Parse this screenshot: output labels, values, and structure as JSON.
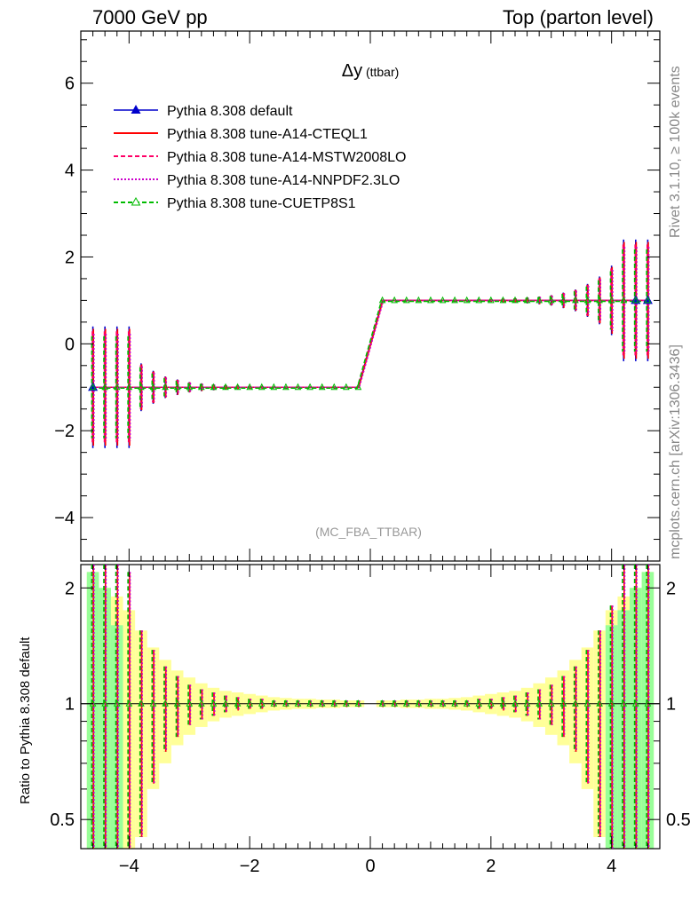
{
  "header": {
    "left": "7000 GeV pp",
    "right": "Top (parton level)"
  },
  "side": {
    "rivet": "Rivet 3.1.10, ≥ 100k events",
    "mcplots": "mcplots.cern.ch [arXiv:1306.3436]"
  },
  "chart_data": [
    {
      "type": "line",
      "title": "Δy",
      "title_suffix": "(ttbar)",
      "analysis": "(MC_FBA_TTBAR)",
      "xlim": [
        -4.8,
        4.8
      ],
      "ylim": [
        -5,
        7.2
      ],
      "yticks": [
        -4,
        -2,
        0,
        2,
        4,
        6
      ],
      "xticks": [
        -4,
        -2,
        0,
        2,
        4
      ],
      "legend_position": "top-left",
      "series": [
        {
          "name": "Pythia 8.308 default",
          "color": "#0000cc",
          "style": "solid",
          "marker": "triangle-filled"
        },
        {
          "name": "Pythia 8.308 tune-A14-CTEQL1",
          "color": "#ff0000",
          "style": "solid",
          "marker": "none"
        },
        {
          "name": "Pythia 8.308 tune-A14-MSTW2008LO",
          "color": "#ff0066",
          "style": "dashed",
          "marker": "none"
        },
        {
          "name": "Pythia 8.308 tune-A14-NNPDF2.3LO",
          "color": "#cc00cc",
          "style": "dotted",
          "marker": "none"
        },
        {
          "name": "Pythia 8.308 tune-CUETP8S1",
          "color": "#00bb00",
          "style": "dashed",
          "marker": "triangle-open"
        }
      ],
      "x": [
        -4.6,
        -4.4,
        -4.2,
        -4.0,
        -3.8,
        -3.6,
        -3.4,
        -3.2,
        -3.0,
        -2.8,
        -2.6,
        -2.4,
        -2.2,
        -2.0,
        -1.8,
        -1.6,
        -1.4,
        -1.2,
        -1.0,
        -0.8,
        -0.6,
        -0.4,
        -0.2,
        0.2,
        0.4,
        0.6,
        0.8,
        1.0,
        1.2,
        1.4,
        1.6,
        1.8,
        2.0,
        2.2,
        2.4,
        2.6,
        2.8,
        3.0,
        3.2,
        3.4,
        3.6,
        3.8,
        4.0,
        4.2,
        4.4,
        4.6
      ],
      "y": [
        -1,
        -1,
        -1,
        -1,
        -1,
        -1,
        -1,
        -1,
        -1,
        -1,
        -1,
        -1,
        -1,
        -1,
        -1,
        -1,
        -1,
        -1,
        -1,
        -1,
        -1,
        -1,
        -1,
        1,
        1,
        1,
        1,
        1,
        1,
        1,
        1,
        1,
        1,
        1,
        1,
        1,
        1,
        1,
        1,
        1,
        1,
        1,
        1,
        1,
        1,
        1
      ],
      "yerr": [
        1.4,
        1.4,
        1.4,
        1.4,
        0.55,
        0.38,
        0.25,
        0.18,
        0.12,
        0.09,
        0.07,
        0.05,
        0.04,
        0.03,
        0.03,
        0.02,
        0.02,
        0.02,
        0.02,
        0.02,
        0.02,
        0.02,
        0.02,
        0.02,
        0.02,
        0.02,
        0.02,
        0.02,
        0.02,
        0.02,
        0.02,
        0.03,
        0.03,
        0.04,
        0.05,
        0.07,
        0.09,
        0.12,
        0.18,
        0.25,
        0.38,
        0.55,
        0.8,
        1.4,
        1.4,
        1.4
      ],
      "markers_default_x": [
        -4.6,
        4.4,
        4.6
      ]
    },
    {
      "type": "line",
      "ylabel": "Ratio to Pythia 8.308 default",
      "xlim": [
        -4.8,
        4.8
      ],
      "ylim": [
        0.42,
        2.3
      ],
      "yscale": "log",
      "yticks": [
        0.5,
        1,
        2
      ],
      "ytick_labels": [
        "0.5",
        "1",
        "2"
      ],
      "xticks": [
        -4,
        -2,
        0,
        2,
        4
      ],
      "xtick_labels": [
        "−4",
        "−2",
        "0",
        "2",
        "4"
      ],
      "reference": 1,
      "band_yellow_halfwidth": [
        1.2,
        1.0,
        0.9,
        0.75,
        0.55,
        0.4,
        0.3,
        0.22,
        0.17,
        0.13,
        0.1,
        0.08,
        0.07,
        0.06,
        0.05,
        0.04,
        0.035,
        0.03,
        0.03,
        0.025,
        0.025,
        0.02,
        0.02,
        0.02,
        0.02,
        0.025,
        0.025,
        0.03,
        0.03,
        0.035,
        0.04,
        0.05,
        0.06,
        0.07,
        0.08,
        0.1,
        0.13,
        0.17,
        0.22,
        0.3,
        0.4,
        0.55,
        0.75,
        0.9,
        1.0,
        1.2
      ],
      "band_green_halfwidth": [
        1.2,
        1.0,
        0.6,
        0.0,
        0.0,
        0.0,
        0.0,
        0.0,
        0.0,
        0.0,
        0.0,
        0.0,
        0.0,
        0.0,
        0.0,
        0.0,
        0.0,
        0.0,
        0.0,
        0.0,
        0.0,
        0.0,
        0.0,
        0.0,
        0.0,
        0.0,
        0.0,
        0.0,
        0.0,
        0.0,
        0.0,
        0.0,
        0.0,
        0.0,
        0.0,
        0.0,
        0.0,
        0.0,
        0.0,
        0.0,
        0.0,
        0.0,
        0.6,
        0.75,
        1.0,
        1.2
      ],
      "ratio_err_halfwidth": [
        1.4,
        1.4,
        1.4,
        1.2,
        0.55,
        0.38,
        0.25,
        0.18,
        0.12,
        0.09,
        0.07,
        0.05,
        0.04,
        0.03,
        0.03,
        0.02,
        0.02,
        0.02,
        0.02,
        0.02,
        0.02,
        0.02,
        0.02,
        0.02,
        0.02,
        0.02,
        0.02,
        0.02,
        0.02,
        0.02,
        0.02,
        0.03,
        0.03,
        0.04,
        0.05,
        0.07,
        0.09,
        0.12,
        0.18,
        0.25,
        0.38,
        0.55,
        0.8,
        1.4,
        1.4,
        1.4
      ]
    }
  ]
}
